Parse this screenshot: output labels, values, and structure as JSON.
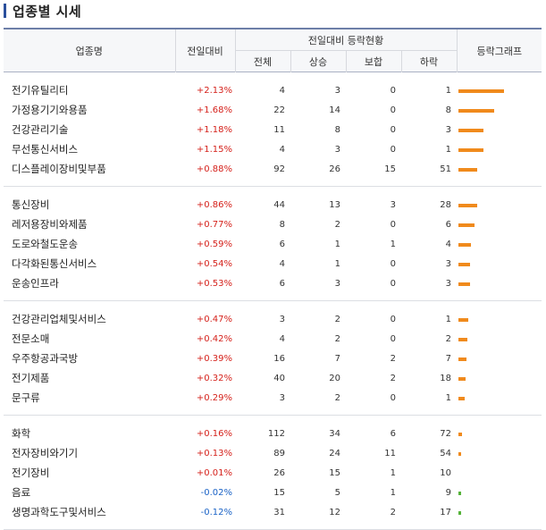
{
  "page": {
    "title": "업종별 시세"
  },
  "headers": {
    "name": "업종명",
    "change": "전일대비",
    "group": "전일대비 등락현황",
    "total": "전체",
    "rise": "상승",
    "flat": "보합",
    "fall": "하락",
    "graph": "등락그래프"
  },
  "colors": {
    "bar_up": "#f08a1c",
    "bar_down": "#55b33a",
    "up_text": "#d5211b",
    "down_text": "#1b63c6"
  },
  "groups": [
    [
      {
        "name": "전기유틸리티",
        "change": "+2.13%",
        "change_value": 2.13,
        "total": "4",
        "rise": "3",
        "flat": "0",
        "fall": "1"
      },
      {
        "name": "가정용기기와용품",
        "change": "+1.68%",
        "change_value": 1.68,
        "total": "22",
        "rise": "14",
        "flat": "0",
        "fall": "8"
      },
      {
        "name": "건강관리기술",
        "change": "+1.18%",
        "change_value": 1.18,
        "total": "11",
        "rise": "8",
        "flat": "0",
        "fall": "3"
      },
      {
        "name": "무선통신서비스",
        "change": "+1.15%",
        "change_value": 1.15,
        "total": "4",
        "rise": "3",
        "flat": "0",
        "fall": "1"
      },
      {
        "name": "디스플레이장비및부품",
        "change": "+0.88%",
        "change_value": 0.88,
        "total": "92",
        "rise": "26",
        "flat": "15",
        "fall": "51"
      }
    ],
    [
      {
        "name": "통신장비",
        "change": "+0.86%",
        "change_value": 0.86,
        "total": "44",
        "rise": "13",
        "flat": "3",
        "fall": "28"
      },
      {
        "name": "레저용장비와제품",
        "change": "+0.77%",
        "change_value": 0.77,
        "total": "8",
        "rise": "2",
        "flat": "0",
        "fall": "6"
      },
      {
        "name": "도로와철도운송",
        "change": "+0.59%",
        "change_value": 0.59,
        "total": "6",
        "rise": "1",
        "flat": "1",
        "fall": "4"
      },
      {
        "name": "다각화된통신서비스",
        "change": "+0.54%",
        "change_value": 0.54,
        "total": "4",
        "rise": "1",
        "flat": "0",
        "fall": "3"
      },
      {
        "name": "운송인프라",
        "change": "+0.53%",
        "change_value": 0.53,
        "total": "6",
        "rise": "3",
        "flat": "0",
        "fall": "3"
      }
    ],
    [
      {
        "name": "건강관리업체및서비스",
        "change": "+0.47%",
        "change_value": 0.47,
        "total": "3",
        "rise": "2",
        "flat": "0",
        "fall": "1"
      },
      {
        "name": "전문소매",
        "change": "+0.42%",
        "change_value": 0.42,
        "total": "4",
        "rise": "2",
        "flat": "0",
        "fall": "2"
      },
      {
        "name": "우주항공과국방",
        "change": "+0.39%",
        "change_value": 0.39,
        "total": "16",
        "rise": "7",
        "flat": "2",
        "fall": "7"
      },
      {
        "name": "전기제품",
        "change": "+0.32%",
        "change_value": 0.32,
        "total": "40",
        "rise": "20",
        "flat": "2",
        "fall": "18"
      },
      {
        "name": "문구류",
        "change": "+0.29%",
        "change_value": 0.29,
        "total": "3",
        "rise": "2",
        "flat": "0",
        "fall": "1"
      }
    ],
    [
      {
        "name": "화학",
        "change": "+0.16%",
        "change_value": 0.16,
        "total": "112",
        "rise": "34",
        "flat": "6",
        "fall": "72"
      },
      {
        "name": "전자장비와기기",
        "change": "+0.13%",
        "change_value": 0.13,
        "total": "89",
        "rise": "24",
        "flat": "11",
        "fall": "54"
      },
      {
        "name": "전기장비",
        "change": "+0.01%",
        "change_value": 0.01,
        "total": "26",
        "rise": "15",
        "flat": "1",
        "fall": "10"
      },
      {
        "name": "음료",
        "change": "-0.02%",
        "change_value": -0.02,
        "total": "15",
        "rise": "5",
        "flat": "1",
        "fall": "9"
      },
      {
        "name": "생명과학도구및서비스",
        "change": "-0.12%",
        "change_value": -0.12,
        "total": "31",
        "rise": "12",
        "flat": "2",
        "fall": "17"
      }
    ]
  ]
}
